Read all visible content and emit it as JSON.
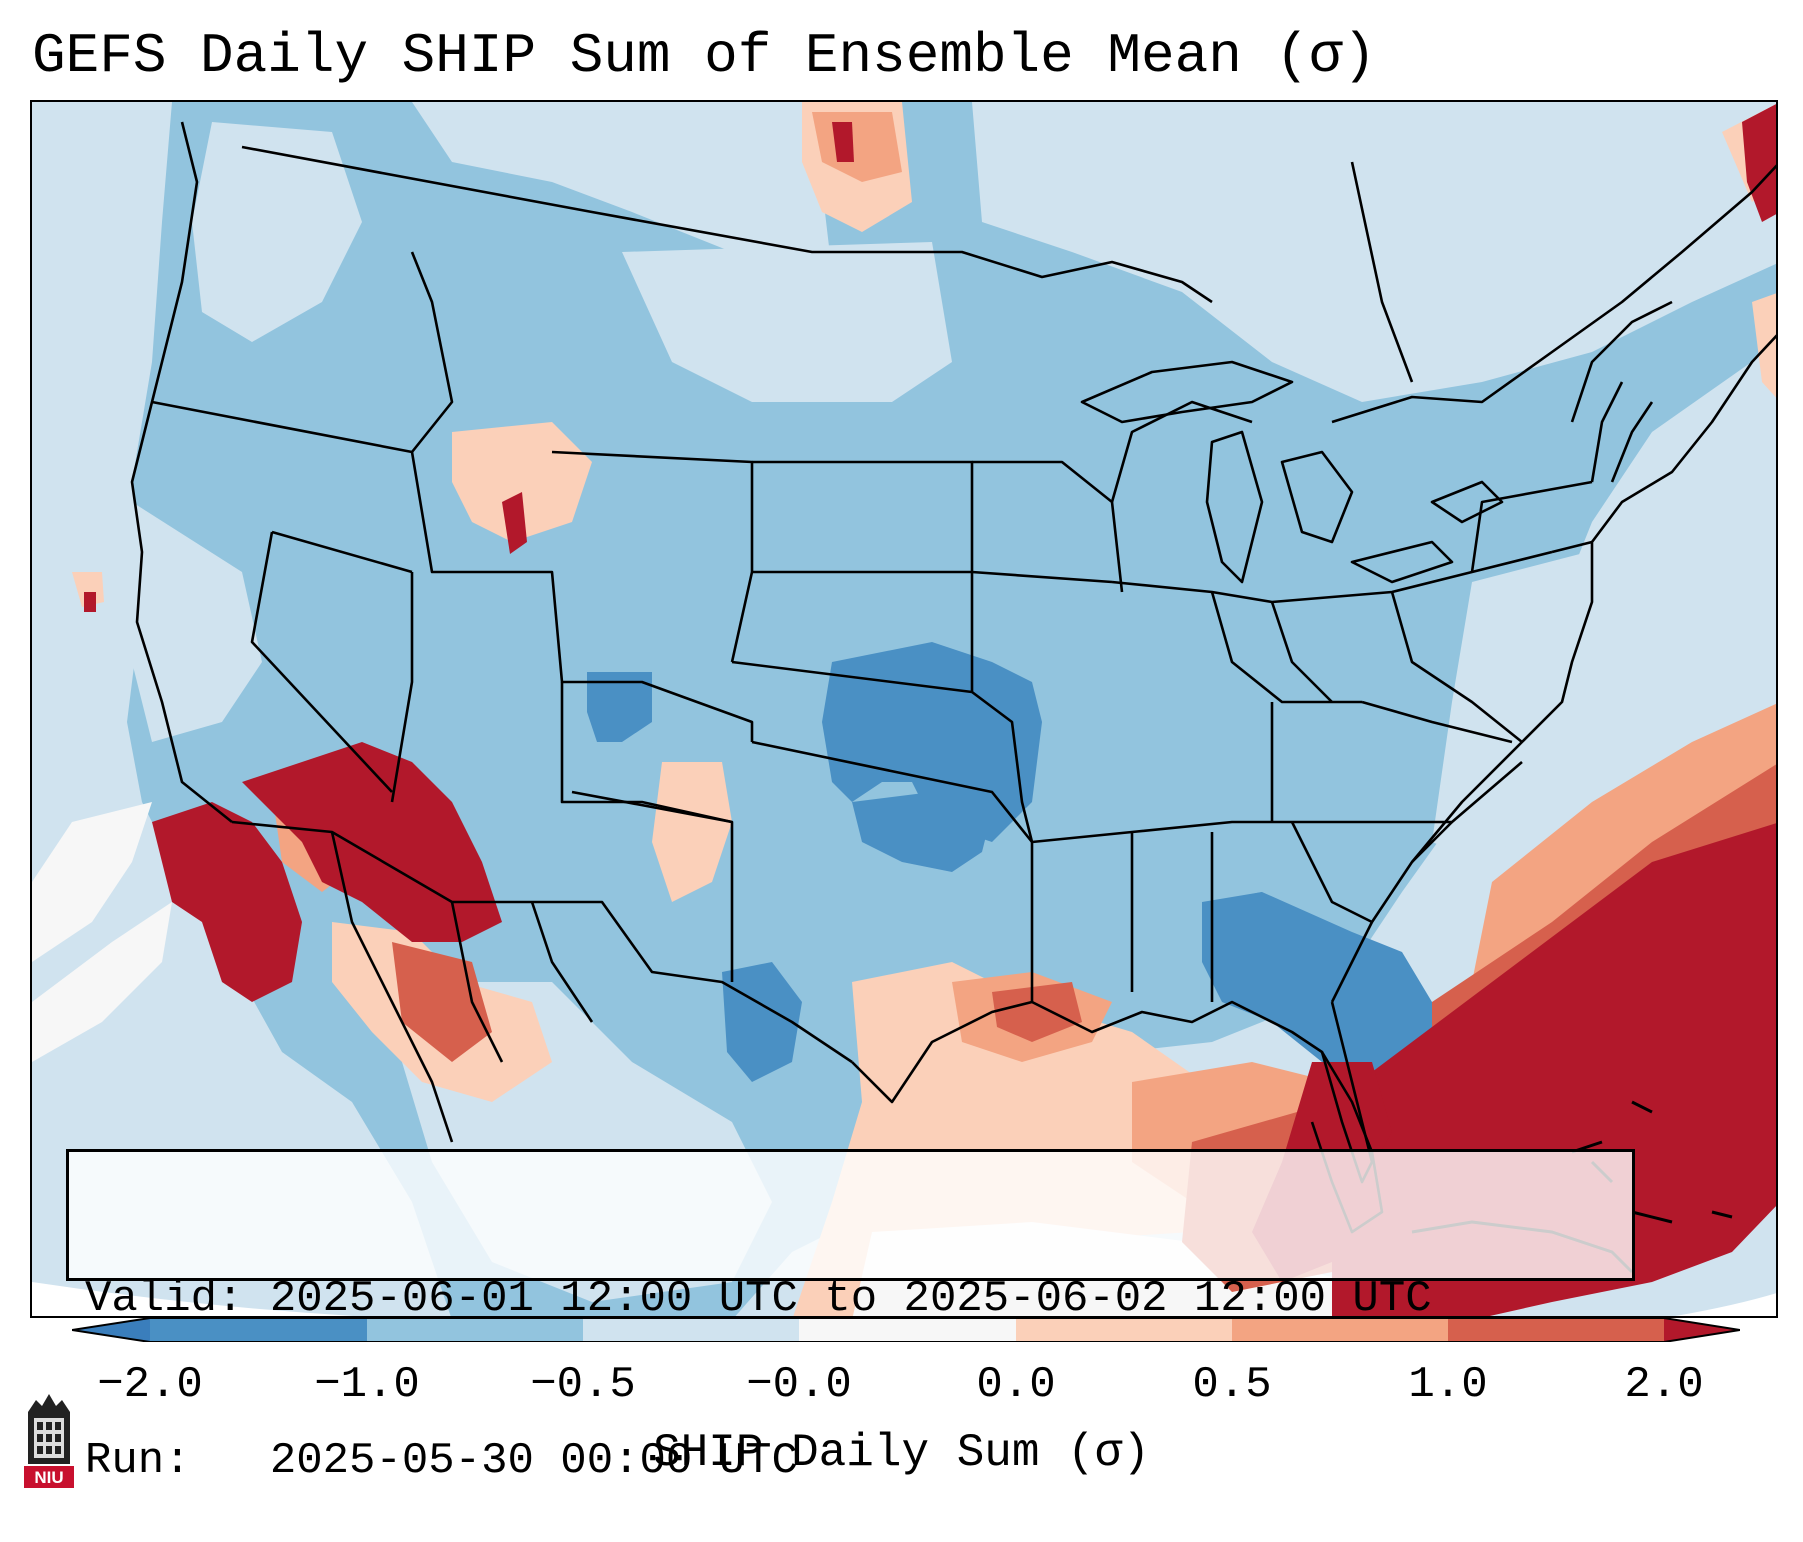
{
  "title": "GEFS Daily SHIP Sum of Ensemble Mean (σ)",
  "info": {
    "valid_label": "Valid:",
    "valid_value": "2025-06-01 12:00 UTC to 2025-06-02 12:00 UTC",
    "run_label": "Run:",
    "run_value": "2025-05-30 00:00 UTC"
  },
  "colorbar": {
    "label": "SHIP Daily Sum (σ)",
    "ticks": [
      "−2.0",
      "−1.0",
      "−0.5",
      "−0.0",
      "0.0",
      "0.5",
      "1.0",
      "2.0"
    ],
    "colors": {
      "below_min": "#3a7ebc",
      "bin_neg2_neg1": "#4a90c4",
      "bin_neg1_neg05": "#92c4de",
      "bin_neg05_0": "#d0e3ef",
      "bin_0": "#f7f7f7",
      "bin_0_05": "#fbd0b9",
      "bin_05_1": "#f3a482",
      "bin_1_2": "#d6604d",
      "above_max": "#b2182b"
    }
  },
  "map_colors": {
    "background_ocean": "#d0e3ef",
    "land_base": "#92c4de",
    "strong_negative": "#4a90c4",
    "slight_negative": "#d0e3ef",
    "slight_positive": "#fbd0b9",
    "moderate_positive": "#f3a482",
    "strong_positive": "#d6604d",
    "extreme_positive": "#b2182b",
    "neutral": "#f7f7f7",
    "boundary": "#000000"
  },
  "logo": {
    "text": "NIU",
    "icon": "niu-tower-logo-icon"
  }
}
